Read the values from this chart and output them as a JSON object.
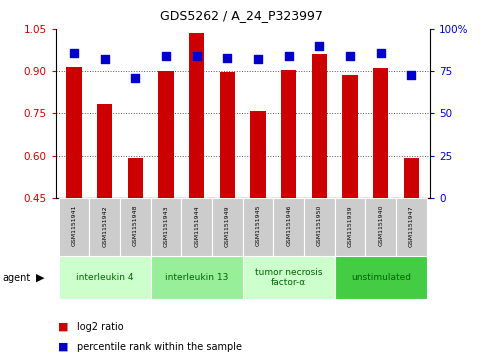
{
  "title": "GDS5262 / A_24_P323997",
  "samples": [
    "GSM1151941",
    "GSM1151942",
    "GSM1151948",
    "GSM1151943",
    "GSM1151944",
    "GSM1151949",
    "GSM1151945",
    "GSM1151946",
    "GSM1151950",
    "GSM1151939",
    "GSM1151940",
    "GSM1151947"
  ],
  "log2_ratio": [
    0.915,
    0.783,
    0.593,
    0.9,
    1.035,
    0.898,
    0.76,
    0.903,
    0.96,
    0.885,
    0.912,
    0.59
  ],
  "percentile_rank": [
    86,
    82,
    71,
    84,
    84,
    83,
    82,
    84,
    90,
    84,
    86,
    73
  ],
  "bar_bottom": 0.45,
  "ylim_left": [
    0.45,
    1.05
  ],
  "ylim_right": [
    0,
    100
  ],
  "yticks_left": [
    0.45,
    0.6,
    0.75,
    0.9,
    1.05
  ],
  "yticks_right": [
    0,
    25,
    50,
    75,
    100
  ],
  "ytick_labels_right": [
    "0",
    "25",
    "50",
    "75",
    "100%"
  ],
  "hlines": [
    0.9,
    0.75,
    0.6
  ],
  "bar_color": "#cc0000",
  "marker_color": "#0000cc",
  "agent_groups": [
    {
      "label": "interleukin 4",
      "start": 0,
      "end": 3,
      "color": "#ccffcc"
    },
    {
      "label": "interleukin 13",
      "start": 3,
      "end": 6,
      "color": "#99ee99"
    },
    {
      "label": "tumor necrosis\nfactor-α",
      "start": 6,
      "end": 9,
      "color": "#ccffcc"
    },
    {
      "label": "unstimulated",
      "start": 9,
      "end": 12,
      "color": "#44cc44"
    }
  ],
  "bar_width": 0.5,
  "marker_size": 35,
  "left_tick_color": "#cc0000",
  "right_tick_color": "#0000cc",
  "grid_color": "#555555",
  "background_plot": "#ffffff"
}
